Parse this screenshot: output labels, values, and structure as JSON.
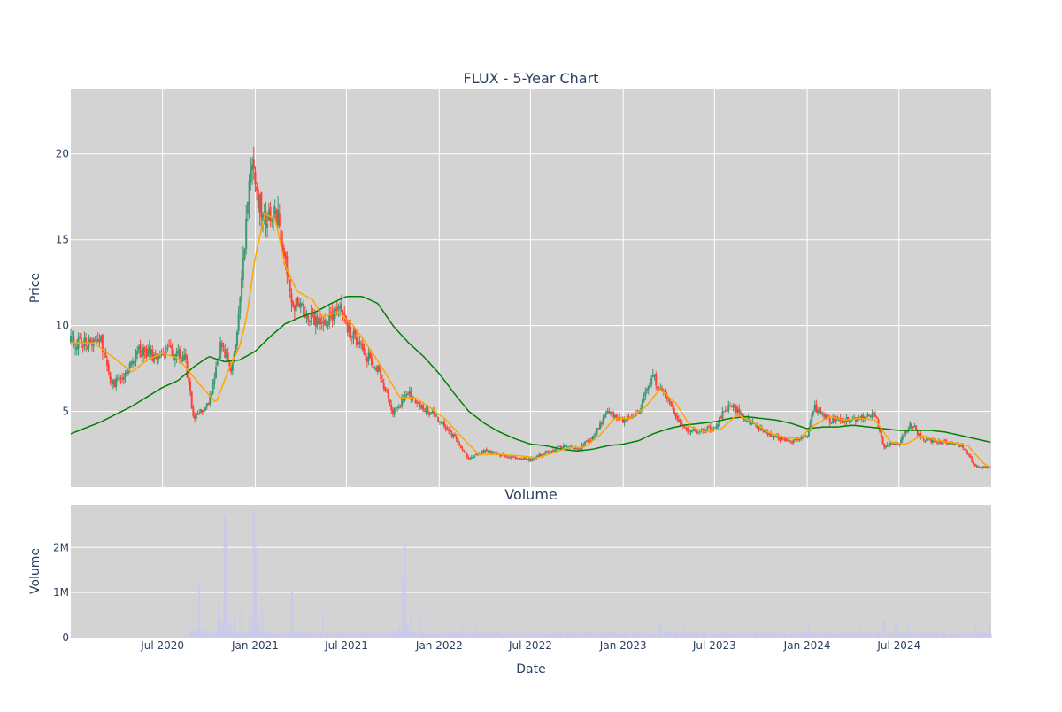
{
  "chart_data": [
    {
      "type": "candlestick",
      "title": "FLUX - 5-Year Chart",
      "ylabel": "Price",
      "ylim": [
        0.6,
        23.8
      ],
      "yticks": [
        5,
        10,
        15,
        20
      ],
      "ytick_labels": [
        "5",
        "10",
        "15",
        "20"
      ],
      "grid": true,
      "background": "#d3d3d3",
      "colors": {
        "up": "#3d9970",
        "down": "#ff4136",
        "ma_short": "#ffa500",
        "ma_long": "#008000"
      },
      "close_anchors": [
        [
          "2020-01-01",
          9.1
        ],
        [
          "2020-02-01",
          8.9
        ],
        [
          "2020-03-01",
          9.2
        ],
        [
          "2020-03-20",
          6.5
        ],
        [
          "2020-04-15",
          7.0
        ],
        [
          "2020-05-15",
          8.5
        ],
        [
          "2020-06-15",
          8.2
        ],
        [
          "2020-07-15",
          8.6
        ],
        [
          "2020-08-15",
          8.0
        ],
        [
          "2020-09-01",
          4.6
        ],
        [
          "2020-10-01",
          5.5
        ],
        [
          "2020-10-25",
          9.0
        ],
        [
          "2020-11-15",
          7.5
        ],
        [
          "2020-12-01",
          11.0
        ],
        [
          "2020-12-25",
          20.0
        ],
        [
          "2021-01-15",
          16.0
        ],
        [
          "2021-02-15",
          16.5
        ],
        [
          "2021-03-15",
          11.5
        ],
        [
          "2021-04-15",
          10.5
        ],
        [
          "2021-05-15",
          10.0
        ],
        [
          "2021-06-15",
          11.0
        ],
        [
          "2021-07-01",
          10.0
        ],
        [
          "2021-08-01",
          8.5
        ],
        [
          "2021-09-01",
          7.5
        ],
        [
          "2021-10-01",
          5.0
        ],
        [
          "2021-11-01",
          6.0
        ],
        [
          "2021-12-01",
          5.2
        ],
        [
          "2022-01-01",
          4.5
        ],
        [
          "2022-02-01",
          3.5
        ],
        [
          "2022-03-01",
          2.2
        ],
        [
          "2022-04-01",
          2.7
        ],
        [
          "2022-05-01",
          2.5
        ],
        [
          "2022-06-01",
          2.3
        ],
        [
          "2022-07-01",
          2.2
        ],
        [
          "2022-08-01",
          2.6
        ],
        [
          "2022-09-01",
          3.0
        ],
        [
          "2022-10-01",
          2.8
        ],
        [
          "2022-11-01",
          3.4
        ],
        [
          "2022-12-01",
          5.0
        ],
        [
          "2023-01-01",
          4.5
        ],
        [
          "2023-02-01",
          5.0
        ],
        [
          "2023-03-01",
          7.0
        ],
        [
          "2023-04-01",
          5.5
        ],
        [
          "2023-05-01",
          4.0
        ],
        [
          "2023-06-01",
          3.8
        ],
        [
          "2023-07-01",
          4.1
        ],
        [
          "2023-08-01",
          5.5
        ],
        [
          "2023-09-01",
          4.5
        ],
        [
          "2023-10-01",
          4.0
        ],
        [
          "2023-11-01",
          3.5
        ],
        [
          "2023-12-01",
          3.3
        ],
        [
          "2024-01-01",
          3.6
        ],
        [
          "2024-01-15",
          5.2
        ],
        [
          "2024-02-15",
          4.5
        ],
        [
          "2024-03-15",
          4.5
        ],
        [
          "2024-04-15",
          4.6
        ],
        [
          "2024-05-15",
          4.8
        ],
        [
          "2024-06-01",
          3.0
        ],
        [
          "2024-07-01",
          3.2
        ],
        [
          "2024-07-25",
          4.3
        ],
        [
          "2024-08-15",
          3.4
        ],
        [
          "2024-10-01",
          3.2
        ],
        [
          "2024-11-01",
          3.0
        ],
        [
          "2024-12-01",
          1.8
        ],
        [
          "2024-12-31",
          1.7
        ]
      ],
      "ma_short": [
        [
          "2020-01-01",
          9.0
        ],
        [
          "2020-02-15",
          9.0
        ],
        [
          "2020-04-01",
          8.0
        ],
        [
          "2020-05-01",
          7.3
        ],
        [
          "2020-06-01",
          8.0
        ],
        [
          "2020-07-01",
          8.4
        ],
        [
          "2020-08-01",
          8.1
        ],
        [
          "2020-09-15",
          6.5
        ],
        [
          "2020-10-15",
          5.5
        ],
        [
          "2020-11-10",
          7.5
        ],
        [
          "2020-12-01",
          8.8
        ],
        [
          "2020-12-15",
          10.5
        ],
        [
          "2021-01-01",
          14.0
        ],
        [
          "2021-01-20",
          16.5
        ],
        [
          "2021-02-10",
          16.2
        ],
        [
          "2021-03-01",
          13.5
        ],
        [
          "2021-03-25",
          12.0
        ],
        [
          "2021-04-25",
          11.5
        ],
        [
          "2021-05-15",
          10.5
        ],
        [
          "2021-06-15",
          10.8
        ],
        [
          "2021-07-15",
          10.0
        ],
        [
          "2021-08-15",
          8.7
        ],
        [
          "2021-09-15",
          7.3
        ],
        [
          "2021-10-15",
          5.8
        ],
        [
          "2021-11-15",
          5.8
        ],
        [
          "2021-12-15",
          5.2
        ],
        [
          "2022-01-15",
          4.5
        ],
        [
          "2022-02-15",
          3.5
        ],
        [
          "2022-03-20",
          2.5
        ],
        [
          "2022-05-01",
          2.5
        ],
        [
          "2022-06-15",
          2.4
        ],
        [
          "2022-07-15",
          2.3
        ],
        [
          "2022-08-15",
          2.6
        ],
        [
          "2022-09-15",
          2.9
        ],
        [
          "2022-10-15",
          2.9
        ],
        [
          "2022-11-15",
          3.6
        ],
        [
          "2022-12-15",
          4.6
        ],
        [
          "2023-01-15",
          4.6
        ],
        [
          "2023-02-15",
          5.3
        ],
        [
          "2023-03-15",
          6.3
        ],
        [
          "2023-04-15",
          5.5
        ],
        [
          "2023-05-15",
          4.1
        ],
        [
          "2023-06-15",
          3.8
        ],
        [
          "2023-07-15",
          4.0
        ],
        [
          "2023-08-15",
          4.8
        ],
        [
          "2023-09-15",
          4.4
        ],
        [
          "2023-10-15",
          3.8
        ],
        [
          "2023-11-15",
          3.5
        ],
        [
          "2023-12-15",
          3.4
        ],
        [
          "2024-01-15",
          4.2
        ],
        [
          "2024-02-15",
          4.7
        ],
        [
          "2024-03-15",
          4.5
        ],
        [
          "2024-04-15",
          4.6
        ],
        [
          "2024-05-15",
          4.5
        ],
        [
          "2024-06-15",
          3.2
        ],
        [
          "2024-07-15",
          3.1
        ],
        [
          "2024-08-15",
          3.6
        ],
        [
          "2024-09-15",
          3.3
        ],
        [
          "2024-10-15",
          3.2
        ],
        [
          "2024-11-15",
          3.0
        ],
        [
          "2024-12-15",
          2.0
        ],
        [
          "2024-12-31",
          1.7
        ]
      ],
      "ma_long": [
        [
          "2020-01-01",
          3.7
        ],
        [
          "2020-03-01",
          4.4
        ],
        [
          "2020-05-01",
          5.3
        ],
        [
          "2020-07-01",
          6.4
        ],
        [
          "2020-08-01",
          6.8
        ],
        [
          "2020-09-01",
          7.6
        ],
        [
          "2020-10-01",
          8.2
        ],
        [
          "2020-11-01",
          7.9
        ],
        [
          "2020-12-01",
          8.0
        ],
        [
          "2021-01-01",
          8.5
        ],
        [
          "2021-02-01",
          9.4
        ],
        [
          "2021-03-01",
          10.1
        ],
        [
          "2021-04-01",
          10.5
        ],
        [
          "2021-05-01",
          10.8
        ],
        [
          "2021-06-01",
          11.3
        ],
        [
          "2021-07-01",
          11.7
        ],
        [
          "2021-08-01",
          11.7
        ],
        [
          "2021-09-01",
          11.3
        ],
        [
          "2021-10-01",
          10.0
        ],
        [
          "2021-11-01",
          9.0
        ],
        [
          "2021-12-01",
          8.2
        ],
        [
          "2022-01-01",
          7.2
        ],
        [
          "2022-02-01",
          6.0
        ],
        [
          "2022-03-01",
          5.0
        ],
        [
          "2022-04-01",
          4.3
        ],
        [
          "2022-05-01",
          3.8
        ],
        [
          "2022-06-01",
          3.4
        ],
        [
          "2022-07-01",
          3.1
        ],
        [
          "2022-08-01",
          3.0
        ],
        [
          "2022-09-01",
          2.8
        ],
        [
          "2022-10-01",
          2.7
        ],
        [
          "2022-11-01",
          2.8
        ],
        [
          "2022-12-01",
          3.0
        ],
        [
          "2023-01-01",
          3.1
        ],
        [
          "2023-02-01",
          3.3
        ],
        [
          "2023-03-01",
          3.7
        ],
        [
          "2023-04-01",
          4.0
        ],
        [
          "2023-05-01",
          4.2
        ],
        [
          "2023-06-01",
          4.3
        ],
        [
          "2023-07-01",
          4.4
        ],
        [
          "2023-08-01",
          4.6
        ],
        [
          "2023-09-01",
          4.7
        ],
        [
          "2023-10-01",
          4.6
        ],
        [
          "2023-11-01",
          4.5
        ],
        [
          "2023-12-01",
          4.3
        ],
        [
          "2024-01-01",
          4.0
        ],
        [
          "2024-02-01",
          4.1
        ],
        [
          "2024-03-01",
          4.1
        ],
        [
          "2024-04-01",
          4.2
        ],
        [
          "2024-05-01",
          4.1
        ],
        [
          "2024-06-01",
          4.0
        ],
        [
          "2024-07-01",
          3.9
        ],
        [
          "2024-08-01",
          3.9
        ],
        [
          "2024-09-01",
          3.9
        ],
        [
          "2024-10-01",
          3.8
        ],
        [
          "2024-11-01",
          3.6
        ],
        [
          "2024-12-01",
          3.4
        ],
        [
          "2024-12-31",
          3.2
        ]
      ],
      "x_range": [
        "2020-01-01",
        "2024-12-31"
      ]
    },
    {
      "type": "bar",
      "title": "Volume",
      "xlabel": "Date",
      "ylabel": "Volume",
      "ylim": [
        0,
        2950000
      ],
      "yticks": [
        0,
        1000000,
        2000000
      ],
      "ytick_labels": [
        "0",
        "1M",
        "2M"
      ],
      "x_range": [
        "2020-01-01",
        "2024-12-31"
      ],
      "xticks": [
        "2020-07-01",
        "2021-01-01",
        "2021-07-01",
        "2022-01-01",
        "2022-07-01",
        "2023-01-01",
        "2023-07-01",
        "2024-01-01",
        "2024-07-01"
      ],
      "xtick_labels": [
        "Jul 2020",
        "Jan 2021",
        "Jul 2021",
        "Jan 2022",
        "Jul 2022",
        "Jan 2023",
        "Jul 2023",
        "Jan 2024",
        "Jul 2024"
      ],
      "grid": true,
      "background": "#d3d3d3",
      "bar_color": "#c8c8ee",
      "spikes": [
        [
          "2020-09-05",
          1100000
        ],
        [
          "2020-09-12",
          1250000
        ],
        [
          "2020-10-20",
          800000
        ],
        [
          "2020-11-01",
          2700000
        ],
        [
          "2020-11-05",
          2300000
        ],
        [
          "2020-11-20",
          450000
        ],
        [
          "2020-12-05",
          600000
        ],
        [
          "2020-12-20",
          750000
        ],
        [
          "2020-12-29",
          2850000
        ],
        [
          "2021-01-02",
          2000000
        ],
        [
          "2021-01-15",
          700000
        ],
        [
          "2021-03-15",
          1000000
        ],
        [
          "2021-05-15",
          550000
        ],
        [
          "2021-10-20",
          1350000
        ],
        [
          "2021-10-25",
          2100000
        ],
        [
          "2021-11-05",
          600000
        ],
        [
          "2021-11-25",
          550000
        ],
        [
          "2022-02-15",
          300000
        ],
        [
          "2022-03-15",
          300000
        ],
        [
          "2023-03-15",
          300000
        ],
        [
          "2023-05-01",
          320000
        ],
        [
          "2024-01-05",
          250000
        ],
        [
          "2024-04-15",
          320000
        ],
        [
          "2024-06-01",
          400000
        ],
        [
          "2024-06-25",
          400000
        ],
        [
          "2024-07-20",
          300000
        ],
        [
          "2024-12-01",
          350000
        ],
        [
          "2024-12-28",
          300000
        ]
      ]
    }
  ]
}
